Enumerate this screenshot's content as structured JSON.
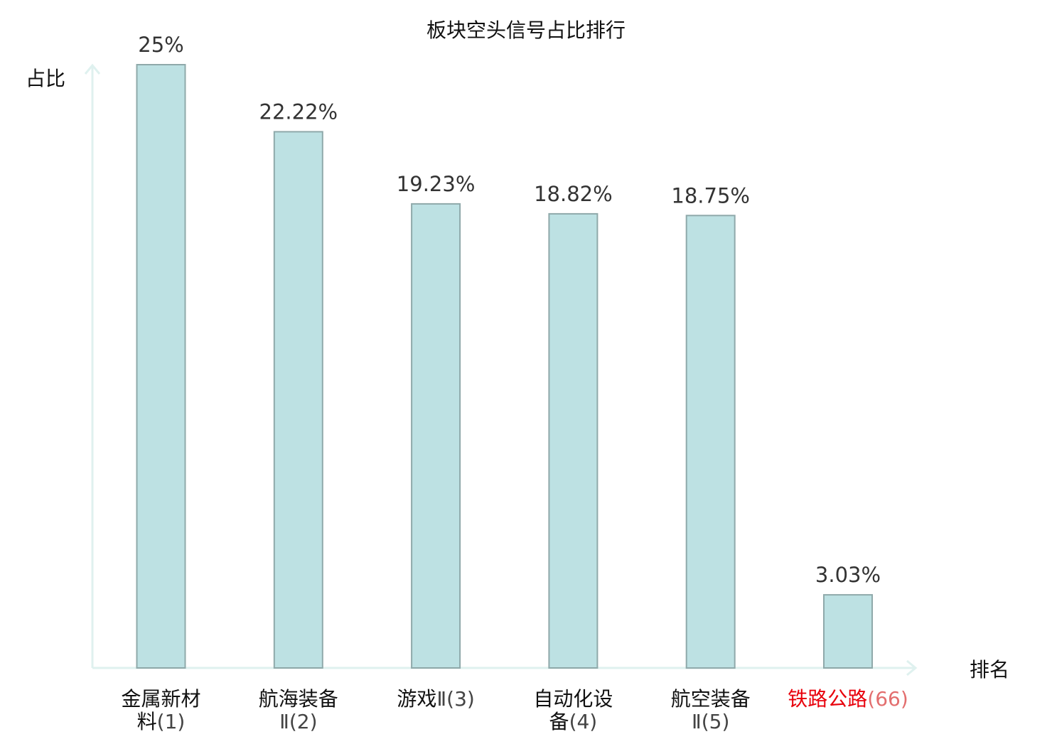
{
  "chart_data": {
    "type": "bar",
    "title": "板块空头信号占比排行",
    "ylabel": "占比",
    "xlabel": "排名",
    "ylim": [
      0,
      25
    ],
    "grid": false,
    "legend": "none",
    "categories": [
      {
        "name": "金属新材料",
        "rank": "(1)",
        "line1": "金属新材",
        "line2": "料(1)"
      },
      {
        "name": "航海装备Ⅱ",
        "rank": "(2)",
        "line1": "航海装备",
        "line2": "Ⅱ(2)"
      },
      {
        "name": "游戏Ⅱ",
        "rank": "(3)",
        "line1": "游戏Ⅱ(3)",
        "line2": ""
      },
      {
        "name": "自动化设备",
        "rank": "(4)",
        "line1": "自动化设",
        "line2": "备(4)"
      },
      {
        "name": "航空装备Ⅱ",
        "rank": "(5)",
        "line1": "航空装备",
        "line2": "Ⅱ(5)"
      },
      {
        "name": "铁路公路",
        "rank": "(66)",
        "line1": "铁路公路(66)",
        "line2": "",
        "highlight": true
      }
    ],
    "values": [
      25,
      22.22,
      19.23,
      18.82,
      18.75,
      3.03
    ],
    "value_labels": [
      "25%",
      "22.22%",
      "19.23%",
      "18.82%",
      "18.75%",
      "3.03%"
    ],
    "colors": {
      "bar_fill": "#bde1e3",
      "bar_stroke": "#8fa9aa",
      "axis": "#dff1ef",
      "highlight_text": "#e8000b",
      "highlight_rank": "#e36e6e",
      "category_text": "#111111",
      "rank_text": "#444444"
    }
  }
}
